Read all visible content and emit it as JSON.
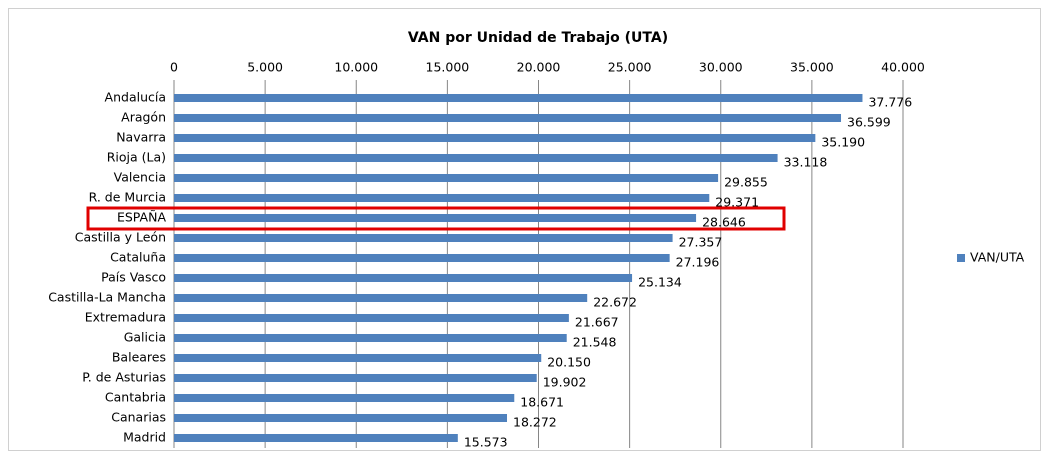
{
  "chart_data": {
    "type": "hbar",
    "title": "VAN por Unidad de Trabajo (UTA)",
    "categories": [
      "Andalucía",
      "Aragón",
      "Navarra",
      "Rioja (La)",
      "Valencia",
      "R. de Murcia",
      "ESPAÑA",
      "Castilla y León",
      "Cataluña",
      "País Vasco",
      "Castilla-La Mancha",
      "Extremadura",
      "Galicia",
      "Baleares",
      "P. de Asturias",
      "Cantabria",
      "Canarias",
      "Madrid"
    ],
    "series": [
      {
        "name": "VAN/UTA",
        "color": "#4f81bd",
        "values": [
          37776,
          36599,
          35190,
          33118,
          29855,
          29371,
          28646,
          27357,
          27196,
          25134,
          22672,
          21667,
          21548,
          20150,
          19902,
          18671,
          18272,
          15573
        ],
        "value_labels": [
          "37.776",
          "36.599",
          "35.190",
          "33.118",
          "29.855",
          "29.371",
          "28.646",
          "27.357",
          "27.196",
          "25.134",
          "22.672",
          "21.667",
          "21.548",
          "20.150",
          "19.902",
          "18.671",
          "18.272",
          "15.573"
        ]
      }
    ],
    "xlim": [
      0,
      40000
    ],
    "xticks": [
      0,
      {
        "value": 5000,
        "label": "5.000"
      },
      {
        "value": 10000,
        "label": "10.000"
      },
      {
        "value": 15000,
        "label": "15.000"
      },
      {
        "value": 20000,
        "label": "20.000"
      },
      {
        "value": 25000,
        "label": "25.000"
      },
      {
        "value": 30000,
        "label": "30.000"
      },
      {
        "value": 35000,
        "label": "35.000"
      },
      {
        "value": 40000,
        "label": "40.000"
      }
    ],
    "grid": true,
    "legend": "right"
  }
}
